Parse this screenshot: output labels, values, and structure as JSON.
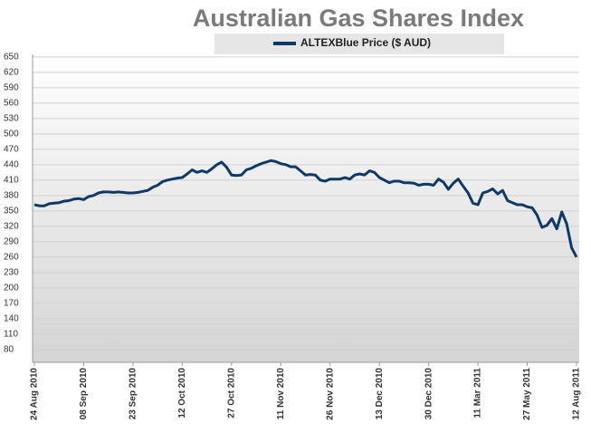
{
  "chart_data": {
    "type": "line",
    "title": "Australian Gas Shares Index",
    "categories": [
      "24 Aug 2010",
      null,
      null,
      null,
      null,
      null,
      null,
      null,
      null,
      null,
      "08 Sep 2010",
      null,
      null,
      null,
      null,
      null,
      null,
      null,
      null,
      null,
      "23 Sep 2010",
      null,
      null,
      null,
      null,
      null,
      null,
      null,
      null,
      null,
      "12 Oct 2010",
      null,
      null,
      null,
      null,
      null,
      null,
      null,
      null,
      null,
      "27 Oct 2010",
      null,
      null,
      null,
      null,
      null,
      null,
      null,
      null,
      null,
      "11 Nov 2010",
      null,
      null,
      null,
      null,
      null,
      null,
      null,
      null,
      null,
      "26 Nov 2010",
      null,
      null,
      null,
      null,
      null,
      null,
      null,
      null,
      null,
      "13 Dec 2010",
      null,
      null,
      null,
      null,
      null,
      null,
      null,
      null,
      null,
      "30 Dec 2010",
      null,
      null,
      null,
      null,
      null,
      null,
      null,
      null,
      null,
      "11 Mar 2011",
      null,
      null,
      null,
      null,
      null,
      null,
      null,
      null,
      null,
      "27 May 2011",
      null,
      null,
      null,
      null,
      null,
      null,
      null,
      null,
      null,
      "12 Aug 2011"
    ],
    "series": [
      {
        "name": "ALTEXBlue Price ($ AUD)",
        "color": "#0f3a68",
        "values": [
          362,
          360,
          360,
          364,
          365,
          366,
          369,
          370,
          373,
          374,
          372,
          378,
          380,
          385,
          387,
          387,
          386,
          387,
          386,
          385,
          385,
          386,
          388,
          390,
          396,
          400,
          407,
          410,
          412,
          414,
          415,
          422,
          430,
          425,
          428,
          425,
          432,
          440,
          445,
          435,
          420,
          419,
          420,
          430,
          433,
          438,
          442,
          445,
          448,
          446,
          442,
          440,
          436,
          436,
          428,
          420,
          421,
          420,
          410,
          408,
          412,
          412,
          412,
          415,
          412,
          420,
          422,
          420,
          428,
          425,
          415,
          410,
          405,
          408,
          408,
          405,
          405,
          404,
          400,
          402,
          402,
          400,
          412,
          406,
          392,
          404,
          412,
          398,
          385,
          365,
          362,
          385,
          388,
          393,
          383,
          390,
          370,
          366,
          362,
          362,
          358,
          356,
          342,
          318,
          322,
          335,
          315,
          348,
          325,
          278,
          260
        ]
      }
    ],
    "ylim": [
      55,
      655
    ],
    "yticks": [
      80,
      110,
      140,
      170,
      200,
      230,
      260,
      290,
      320,
      350,
      380,
      410,
      440,
      470,
      500,
      530,
      560,
      590,
      620,
      650
    ],
    "grid": true,
    "legend": "top"
  }
}
